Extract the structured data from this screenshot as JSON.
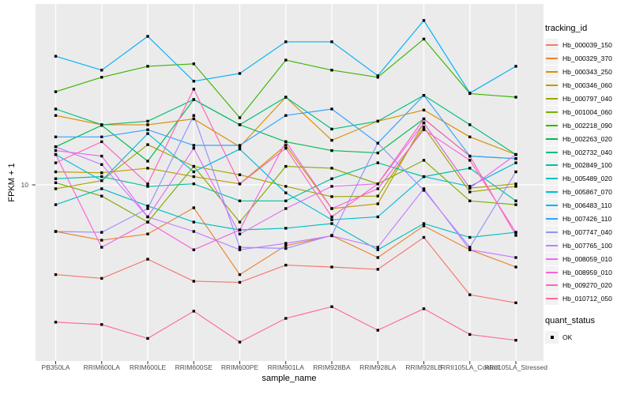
{
  "figure": {
    "y_axis_title": "FPKM + 1",
    "x_axis_title": "sample_name",
    "y_tick_label": "10",
    "panel_bg": "#EBEBEB",
    "gridline_color": "#FFFFFF",
    "tick_color": "#333333",
    "tick_label_color": "#4D4D4D"
  },
  "legend": {
    "tracking_title": "tracking_id",
    "quant_title": "quant_status",
    "quant_items": [
      {
        "label": "OK",
        "marker": "filled-black-square"
      }
    ]
  },
  "chart_data": {
    "type": "line",
    "title": "",
    "xlabel": "sample_name",
    "ylabel": "FPKM + 1",
    "yscale": "log10",
    "ylim": [
      1.9,
      55
    ],
    "y_major_breaks": [
      10
    ],
    "grid": "white major gridlines on gray panel",
    "legend_position": "right",
    "point_marker": "small filled black square",
    "x": [
      "PB350LA",
      "RRIM600LA",
      "RRIM600LE",
      "RRIM600SE",
      "RRIM600PE",
      "RRIM901LA",
      "RRIM928BA",
      "RRIM928LA",
      "RRIM928LB",
      "RRII105LA_Control",
      "RRII105LA_Stressed"
    ],
    "series": [
      {
        "name": "Hb_000039_150",
        "color": "#F8766D",
        "values": [
          4.3,
          4.15,
          4.97,
          4.04,
          4.0,
          4.7,
          4.62,
          4.52,
          6.1,
          3.56,
          3.3
        ]
      },
      {
        "name": "Hb_000329_370",
        "color": "#EA8331",
        "values": [
          6.45,
          5.94,
          6.3,
          8.06,
          4.3,
          5.65,
          6.2,
          5.05,
          6.8,
          5.43,
          4.62
        ]
      },
      {
        "name": "Hb_000343_250",
        "color": "#D89000",
        "values": [
          19.2,
          17.6,
          17.6,
          18.6,
          14.3,
          22.8,
          15.2,
          18.2,
          20.2,
          15.7,
          13.3
        ]
      },
      {
        "name": "Hb_000346_060",
        "color": "#C09B00",
        "values": [
          11.3,
          11.2,
          11.7,
          10.8,
          10.1,
          14.5,
          8.0,
          8.37,
          17.9,
          9.7,
          10.1
        ]
      },
      {
        "name": "Hb_000797_040",
        "color": "#A3A500",
        "values": [
          9.64,
          10.4,
          14.6,
          11.9,
          11.0,
          9.86,
          8.95,
          9.0,
          17.2,
          9.35,
          9.86
        ]
      },
      {
        "name": "Hb_001004_060",
        "color": "#7CAE00",
        "values": [
          10.2,
          9.0,
          7.05,
          11.9,
          7.05,
          11.9,
          11.7,
          10.1,
          12.6,
          8.6,
          8.3
        ]
      },
      {
        "name": "Hb_002218_090",
        "color": "#39B600",
        "values": [
          24.0,
          27.5,
          30.5,
          31.2,
          18.8,
          32.3,
          29.4,
          27.5,
          39.4,
          23.6,
          22.8
        ]
      },
      {
        "name": "Hb_002263_020",
        "color": "#00BB4E",
        "values": [
          14.3,
          17.5,
          12.5,
          22.3,
          17.6,
          15.0,
          13.8,
          13.5,
          18.6,
          13.1,
          12.8
        ]
      },
      {
        "name": "Hb_002732_040",
        "color": "#00BF7D",
        "values": [
          20.4,
          17.6,
          18.2,
          22.3,
          17.6,
          22.8,
          16.9,
          18.2,
          23.2,
          17.6,
          13.3
        ]
      },
      {
        "name": "Hb_002849_100",
        "color": "#00C1A3",
        "values": [
          10.6,
          10.8,
          9.86,
          10.1,
          8.6,
          8.6,
          10.6,
          12.3,
          10.8,
          11.7,
          8.6
        ]
      },
      {
        "name": "Hb_005489_020",
        "color": "#00BFC4",
        "values": [
          8.3,
          9.64,
          8.2,
          7.05,
          6.55,
          6.65,
          6.95,
          5.43,
          6.95,
          6.1,
          6.4
        ]
      },
      {
        "name": "Hb_005867_070",
        "color": "#00BAE0",
        "values": [
          13.3,
          10.4,
          16.2,
          11.3,
          14.0,
          9.28,
          7.2,
          7.4,
          10.8,
          9.86,
          12.3
        ]
      },
      {
        "name": "Hb_006483_110",
        "color": "#00B0F6",
        "values": [
          33.5,
          29.4,
          40.4,
          26.5,
          28.5,
          38.4,
          38.4,
          27.9,
          46.9,
          23.7,
          30.5
        ]
      },
      {
        "name": "Hb_007426_110",
        "color": "#35A2FF",
        "values": [
          15.7,
          15.7,
          16.8,
          14.5,
          14.5,
          19.2,
          20.4,
          14.8,
          23.2,
          13.1,
          12.8
        ]
      },
      {
        "name": "Hb_007747_040",
        "color": "#9590FF",
        "values": [
          6.45,
          6.4,
          8.0,
          19.2,
          5.56,
          5.5,
          6.22,
          14.8,
          9.5,
          5.56,
          11.3
        ]
      },
      {
        "name": "Hb_007765_100",
        "color": "#C77CFF",
        "values": [
          14.3,
          12.1,
          7.4,
          6.45,
          5.43,
          5.77,
          6.2,
          5.56,
          9.64,
          5.43,
          5.05
        ]
      },
      {
        "name": "Hb_008059_010",
        "color": "#E76BF3",
        "values": [
          13.8,
          13.1,
          7.4,
          14.1,
          6.3,
          8.0,
          9.86,
          10.1,
          17.9,
          9.7,
          13.3
        ]
      },
      {
        "name": "Hb_008959_010",
        "color": "#FA62DB",
        "values": [
          13.3,
          5.56,
          7.05,
          5.43,
          6.55,
          15.0,
          8.0,
          9.64,
          16.8,
          12.6,
          6.4
        ]
      },
      {
        "name": "Hb_009270_020",
        "color": "#FF62BC",
        "values": [
          12.3,
          15.0,
          10.1,
          24.6,
          10.1,
          14.1,
          7.4,
          10.1,
          18.6,
          13.1,
          6.22
        ]
      },
      {
        "name": "Hb_010712_050",
        "color": "#FF6A98",
        "values": [
          2.75,
          2.69,
          2.36,
          3.05,
          2.28,
          2.85,
          3.18,
          2.55,
          3.12,
          2.45,
          2.32
        ]
      }
    ]
  }
}
